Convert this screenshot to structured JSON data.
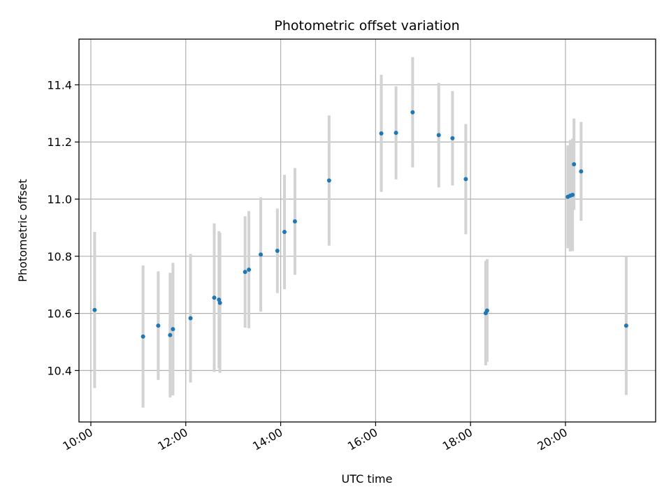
{
  "chart_data": {
    "type": "scatter",
    "title": "Photometric offset variation",
    "xlabel": "UTC time",
    "ylabel": "Photometric offset",
    "x_unit": "hours",
    "xlim": [
      9.75,
      21.9
    ],
    "ylim": [
      10.22,
      11.56
    ],
    "x_ticks": [
      {
        "value": 10,
        "label": "10:00"
      },
      {
        "value": 12,
        "label": "12:00"
      },
      {
        "value": 14,
        "label": "14:00"
      },
      {
        "value": 16,
        "label": "16:00"
      },
      {
        "value": 18,
        "label": "18:00"
      },
      {
        "value": 20,
        "label": "20:00"
      }
    ],
    "y_ticks": [
      {
        "value": 10.4,
        "label": "10.4"
      },
      {
        "value": 10.6,
        "label": "10.6"
      },
      {
        "value": 10.8,
        "label": "10.8"
      },
      {
        "value": 11.0,
        "label": "11.0"
      },
      {
        "value": 11.2,
        "label": "11.2"
      },
      {
        "value": 11.4,
        "label": "11.4"
      }
    ],
    "grid": true,
    "colors": {
      "point": "#1f77b4",
      "errorbar": "#d3d3d3",
      "grid": "#b0b0b0"
    },
    "points": [
      {
        "x": 10.08,
        "y": 10.612,
        "err": 0.273
      },
      {
        "x": 11.1,
        "y": 10.519,
        "err": 0.249
      },
      {
        "x": 11.42,
        "y": 10.557,
        "err": 0.19
      },
      {
        "x": 11.67,
        "y": 10.524,
        "err": 0.218
      },
      {
        "x": 11.73,
        "y": 10.545,
        "err": 0.232
      },
      {
        "x": 12.1,
        "y": 10.583,
        "err": 0.225
      },
      {
        "x": 12.6,
        "y": 10.655,
        "err": 0.26
      },
      {
        "x": 12.7,
        "y": 10.648,
        "err": 0.24
      },
      {
        "x": 12.72,
        "y": 10.637,
        "err": 0.245
      },
      {
        "x": 13.25,
        "y": 10.745,
        "err": 0.195
      },
      {
        "x": 13.33,
        "y": 10.753,
        "err": 0.205
      },
      {
        "x": 13.58,
        "y": 10.806,
        "err": 0.2
      },
      {
        "x": 13.93,
        "y": 10.819,
        "err": 0.148
      },
      {
        "x": 14.08,
        "y": 10.885,
        "err": 0.2
      },
      {
        "x": 14.3,
        "y": 10.922,
        "err": 0.187
      },
      {
        "x": 15.02,
        "y": 11.065,
        "err": 0.228
      },
      {
        "x": 16.12,
        "y": 11.23,
        "err": 0.205
      },
      {
        "x": 16.43,
        "y": 11.232,
        "err": 0.163
      },
      {
        "x": 16.78,
        "y": 11.304,
        "err": 0.193
      },
      {
        "x": 17.33,
        "y": 11.224,
        "err": 0.183
      },
      {
        "x": 17.62,
        "y": 11.213,
        "err": 0.165
      },
      {
        "x": 17.9,
        "y": 11.07,
        "err": 0.193
      },
      {
        "x": 18.32,
        "y": 10.601,
        "err": 0.183
      },
      {
        "x": 18.35,
        "y": 10.61,
        "err": 0.18
      },
      {
        "x": 20.05,
        "y": 11.008,
        "err": 0.18
      },
      {
        "x": 20.1,
        "y": 11.012,
        "err": 0.195
      },
      {
        "x": 20.15,
        "y": 11.015,
        "err": 0.197
      },
      {
        "x": 20.18,
        "y": 11.122,
        "err": 0.16
      },
      {
        "x": 20.33,
        "y": 11.097,
        "err": 0.173
      },
      {
        "x": 21.28,
        "y": 10.557,
        "err": 0.243
      }
    ]
  }
}
